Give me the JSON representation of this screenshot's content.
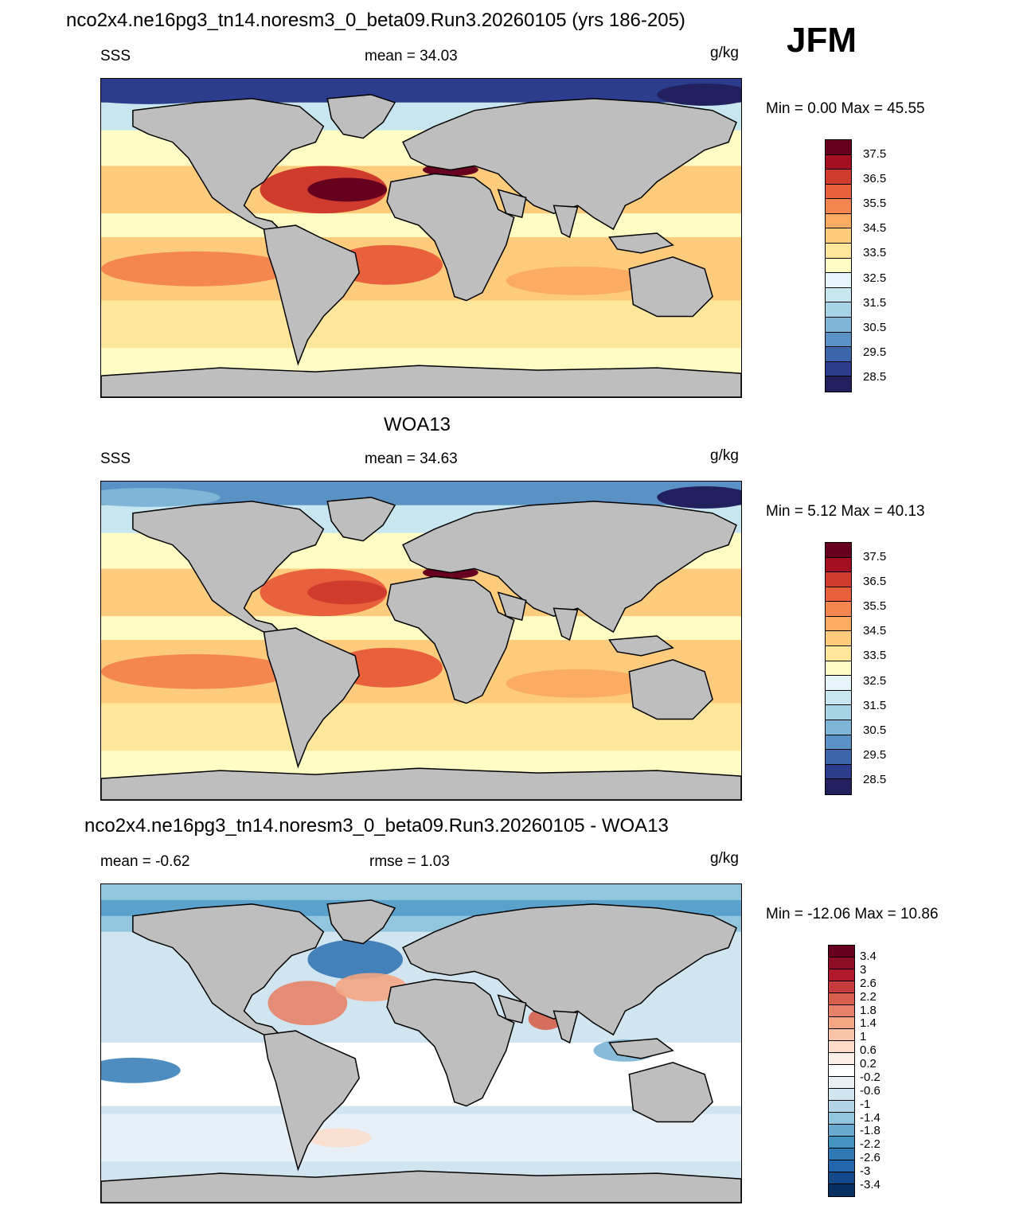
{
  "header": {
    "run_title": "nco2x4.ne16pg3_tn14.noresm3_0_beta09.Run3.20260105 (yrs 186-205)",
    "season": "JFM"
  },
  "panels": [
    {
      "id": "model",
      "title": "",
      "left_label": "SSS",
      "center_label": "mean =  34.03",
      "units": "g/kg",
      "minmax": "Min =   0.00 Max =  45.55",
      "kind": "abs"
    },
    {
      "id": "obs",
      "title": "WOA13",
      "left_label": "SSS",
      "center_label": "mean =  34.63",
      "units": "g/kg",
      "minmax": "Min =   5.12 Max =  40.13",
      "kind": "abs"
    },
    {
      "id": "diff",
      "title": "nco2x4.ne16pg3_tn14.noresm3_0_beta09.Run3.20260105 - WOA13",
      "left_label": "mean =  -0.62",
      "center_label": "rmse =   1.03",
      "units": "g/kg",
      "minmax": "Min = -12.06 Max =  10.86",
      "kind": "diff"
    }
  ],
  "colorbars": {
    "abs": {
      "labels": [
        "37.5",
        "36.5",
        "35.5",
        "34.5",
        "33.5",
        "32.5",
        "31.5",
        "30.5",
        "29.5",
        "28.5"
      ],
      "colors": [
        "#67001f",
        "#a50f22",
        "#cf3b2c",
        "#e8603c",
        "#f4874f",
        "#fbab62",
        "#fdcb7c",
        "#fee69a",
        "#fffcc4",
        "#e6f5f9",
        "#c7e6f0",
        "#a6d3e6",
        "#7fb6d8",
        "#5b92c5",
        "#3c66ab",
        "#2b3d8c",
        "#23205f"
      ]
    },
    "diff": {
      "labels": [
        "3.4",
        "3",
        "2.6",
        "2.2",
        "1.8",
        "1.4",
        "1",
        "0.6",
        "0.2",
        "-0.2",
        "-0.6",
        "-1",
        "-1.4",
        "-1.8",
        "-2.2",
        "-2.6",
        "-3",
        "-3.4"
      ],
      "colors": [
        "#67001f",
        "#8c0d25",
        "#b2182b",
        "#c53e3d",
        "#d6604d",
        "#e58267",
        "#f4a582",
        "#f9c4a8",
        "#fddbc7",
        "#fbeee6",
        "#ffffff",
        "#e6f0f6",
        "#d1e5f0",
        "#b3d4e8",
        "#92c5de",
        "#6aa9d0",
        "#4393c3",
        "#2f79b5",
        "#2166ac",
        "#124a8c",
        "#053061"
      ]
    }
  },
  "map_colors": {
    "land": "#bebebe",
    "coast": "#000000"
  }
}
